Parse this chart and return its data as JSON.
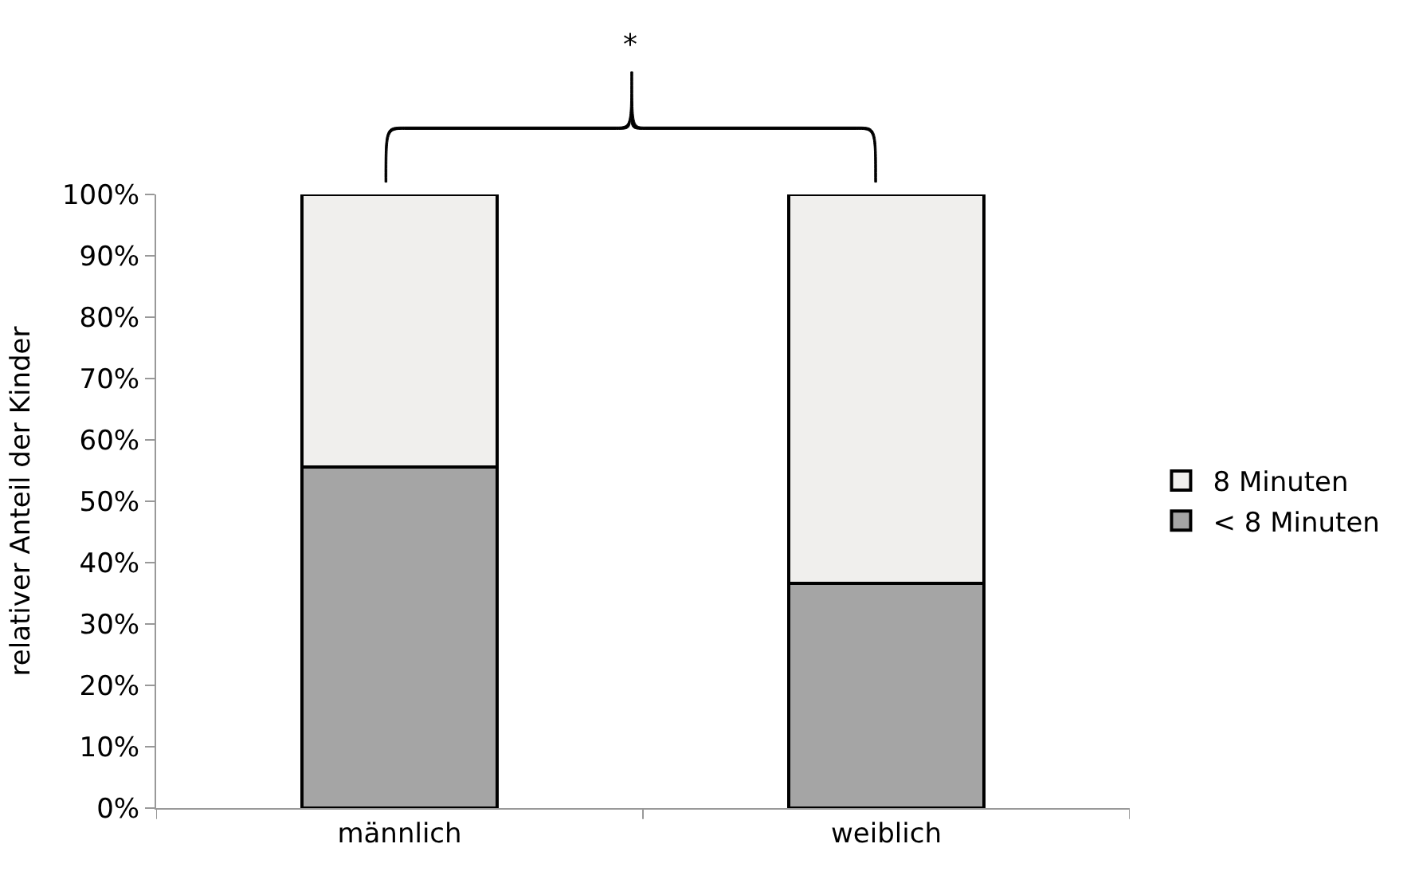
{
  "chart_data": {
    "type": "bar",
    "stacked": true,
    "ylabel": "relativer Anteil der Kinder",
    "categories": [
      "männlich",
      "weiblich"
    ],
    "series": [
      {
        "name": "< 8 Minuten",
        "color": "#a5a5a5",
        "values": [
          55.6,
          36.6
        ]
      },
      {
        "name": "8 Minuten",
        "color": "#f0efed",
        "values": [
          44.4,
          63.4
        ]
      }
    ],
    "ylim": [
      0,
      100
    ],
    "yticks": [
      {
        "value": 0,
        "label": "0%"
      },
      {
        "value": 10,
        "label": "10%"
      },
      {
        "value": 20,
        "label": "20%"
      },
      {
        "value": 30,
        "label": "30%"
      },
      {
        "value": 40,
        "label": "40%"
      },
      {
        "value": 50,
        "label": "50%"
      },
      {
        "value": 60,
        "label": "60%"
      },
      {
        "value": 70,
        "label": "70%"
      },
      {
        "value": 80,
        "label": "80%"
      },
      {
        "value": 90,
        "label": "90%"
      },
      {
        "value": 100,
        "label": "100%"
      }
    ],
    "legend": "right",
    "annotations": [
      "*"
    ]
  }
}
